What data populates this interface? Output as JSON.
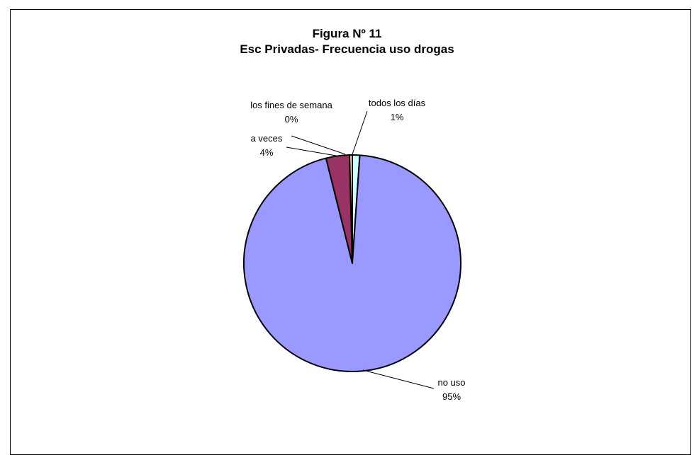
{
  "chart_data": {
    "type": "pie",
    "title_line1": "Figura Nº 11",
    "title_line2": "Esc Privadas- Frecuencia uso drogas",
    "start_angle_deg": 0,
    "direction": "clockwise",
    "slices": [
      {
        "name": "todos los días",
        "value": 1.1,
        "percent_label": "1%",
        "color": "#CCFFFF"
      },
      {
        "name": "no uso",
        "value": 95.0,
        "percent_label": "95%",
        "color": "#9999FF"
      },
      {
        "name": "a veces",
        "value": 3.5,
        "percent_label": "4%",
        "color": "#993366"
      },
      {
        "name": "los fines de semana",
        "value": 0.4,
        "percent_label": "0%",
        "color": "#FFFFCC"
      }
    ]
  }
}
